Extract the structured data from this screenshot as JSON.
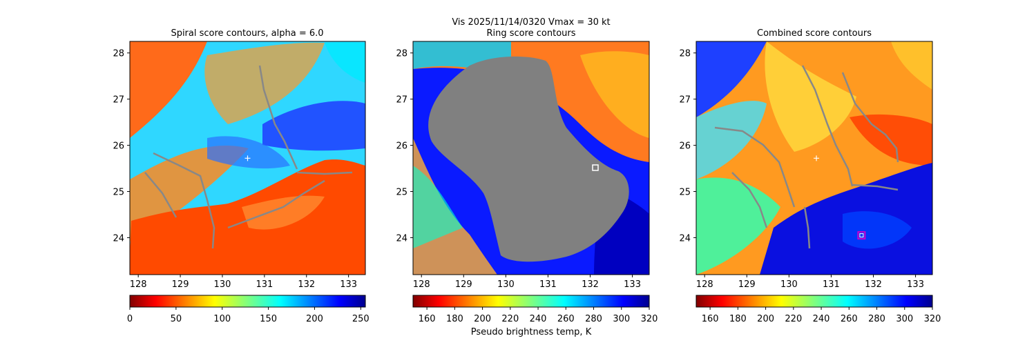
{
  "figure": {
    "suptitle_line1": "Vis  2025/11/14/0320    Vmax = 30 kt",
    "colorbar_label": "Pseudo brightness temp, K"
  },
  "colors": {
    "gray_mask": "#808080",
    "track_line": "#888888",
    "center_marker": "#ffffff",
    "combined_box": "#cc00cc"
  },
  "chart_data": [
    {
      "type": "heatmap",
      "title": "Spiral score contours, alpha =  6.0",
      "xlim": [
        127.8,
        133.4
      ],
      "ylim": [
        23.2,
        28.25
      ],
      "xticks": [
        "128",
        "129",
        "130",
        "131",
        "132",
        "133"
      ],
      "yticks": [
        "24",
        "25",
        "26",
        "27",
        "28"
      ],
      "colormap": "jet_r",
      "colorbar": {
        "min": 0,
        "max": 255,
        "ticks": [
          "0",
          "50",
          "100",
          "150",
          "200",
          "250"
        ]
      },
      "center_marker": {
        "lon": 130.6,
        "lat": 25.72
      },
      "box_marker": null
    },
    {
      "type": "heatmap",
      "title": "Ring score contours",
      "xlim": [
        127.8,
        133.4
      ],
      "ylim": [
        23.2,
        28.25
      ],
      "xticks": [
        "128",
        "129",
        "130",
        "131",
        "132",
        "133"
      ],
      "yticks": [
        "24",
        "25",
        "26",
        "27",
        "28"
      ],
      "colormap": "jet_r",
      "colorbar": {
        "min": 150,
        "max": 320,
        "ticks": [
          "160",
          "180",
          "200",
          "220",
          "240",
          "260",
          "280",
          "300",
          "320"
        ]
      },
      "masked_region": "gray",
      "box_marker": {
        "lon": 132.12,
        "lat": 25.52
      }
    },
    {
      "type": "heatmap",
      "title": "Combined score contours",
      "xlim": [
        127.8,
        133.4
      ],
      "ylim": [
        23.2,
        28.25
      ],
      "xticks": [
        "128",
        "129",
        "130",
        "131",
        "132",
        "133"
      ],
      "yticks": [
        "24",
        "25",
        "26",
        "27",
        "28"
      ],
      "colormap": "jet_r",
      "colorbar": {
        "min": 150,
        "max": 320,
        "ticks": [
          "160",
          "180",
          "200",
          "220",
          "240",
          "260",
          "280",
          "300",
          "320"
        ]
      },
      "center_marker": {
        "lon": 130.65,
        "lat": 25.72
      },
      "box_marker": {
        "lon": 131.72,
        "lat": 24.05
      }
    }
  ]
}
